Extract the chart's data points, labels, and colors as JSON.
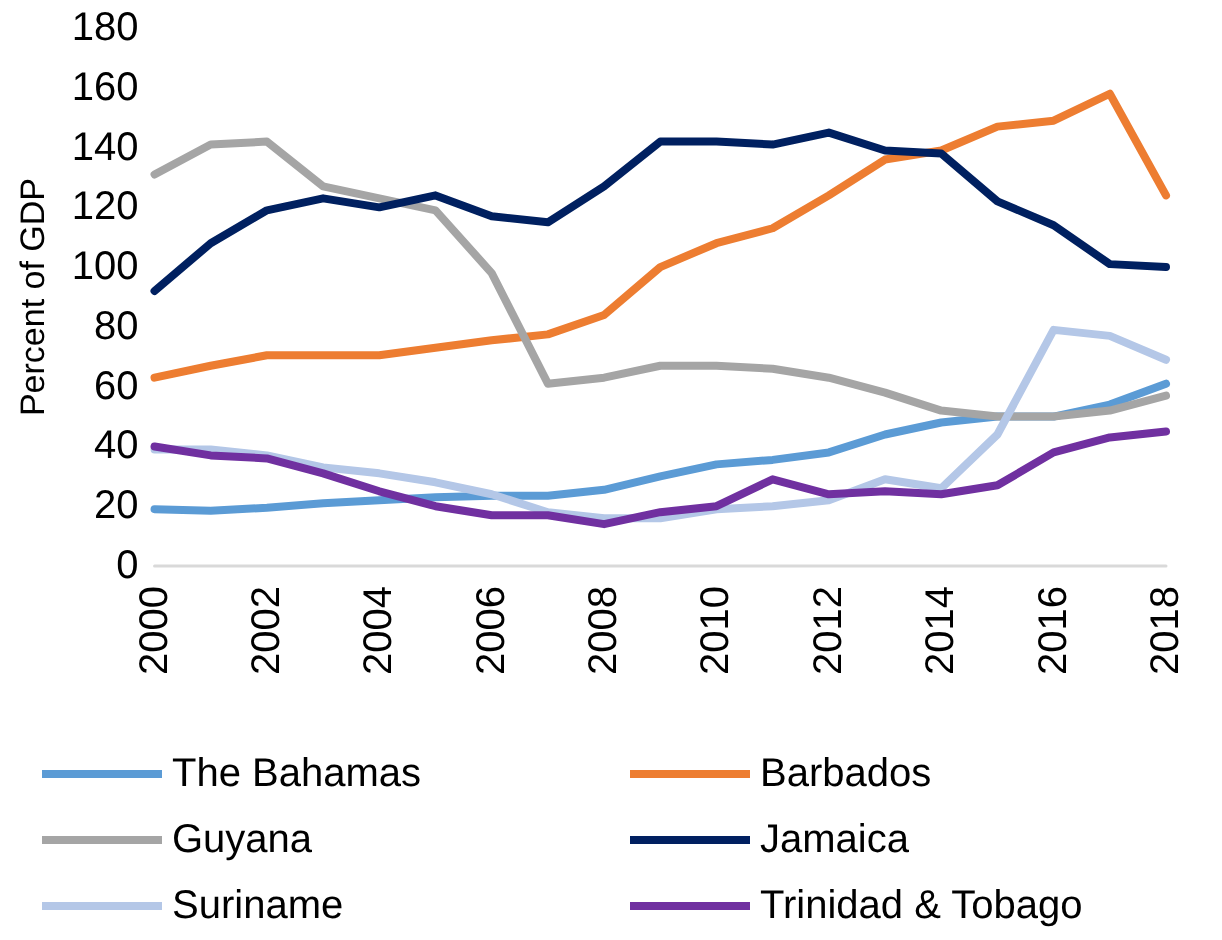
{
  "chart_data": {
    "type": "line",
    "ylabel": "Percent of GDP",
    "categories": [
      "2000",
      null,
      "2002",
      null,
      "2004",
      null,
      "2006",
      null,
      "2008",
      null,
      "2010",
      null,
      "2012",
      null,
      "2014",
      null,
      "2016",
      null,
      "2018"
    ],
    "series": [
      {
        "name": "The Bahamas",
        "color": "#5b9bd5",
        "values": [
          19,
          18.5,
          19.5,
          21,
          22,
          23,
          23.5,
          23.5,
          25.5,
          30,
          34,
          35.5,
          38,
          44,
          48,
          50,
          50,
          54,
          61
        ]
      },
      {
        "name": "Barbados",
        "color": "#ed7d31",
        "values": [
          63,
          67,
          70.5,
          70.5,
          70.5,
          73,
          75.5,
          77.5,
          84,
          100,
          108,
          113,
          124,
          136,
          139,
          147,
          149,
          158,
          124
        ]
      },
      {
        "name": "Guyana",
        "color": "#a5a5a5",
        "values": [
          131,
          141,
          142,
          127,
          123,
          119,
          98,
          61,
          63,
          67,
          67,
          66,
          63,
          58,
          52,
          50,
          50,
          52,
          57
        ]
      },
      {
        "name": "Jamaica",
        "color": "#002060",
        "values": [
          92,
          108,
          119,
          123,
          120,
          124,
          117,
          115,
          127,
          142,
          142,
          141,
          145,
          139,
          138,
          122,
          114,
          101,
          100
        ]
      },
      {
        "name": "Suriname",
        "color": "#b4c7e7",
        "values": [
          39,
          39,
          37,
          33,
          31,
          28,
          24,
          18,
          16,
          16,
          19,
          20,
          22,
          29,
          26,
          44,
          79,
          77,
          69
        ]
      },
      {
        "name": "Trinidad & Tobago",
        "color": "#7030a0",
        "values": [
          40,
          37,
          36,
          31,
          25,
          20,
          17,
          17,
          14,
          18,
          20,
          29,
          24,
          25,
          24,
          27,
          38,
          43,
          45
        ]
      }
    ],
    "ylim": [
      0,
      180
    ],
    "yticks": [
      0,
      20,
      40,
      60,
      80,
      100,
      120,
      140,
      160,
      180
    ],
    "grid": false,
    "legend": "bottom",
    "marker": "none",
    "line_style": "solid"
  }
}
